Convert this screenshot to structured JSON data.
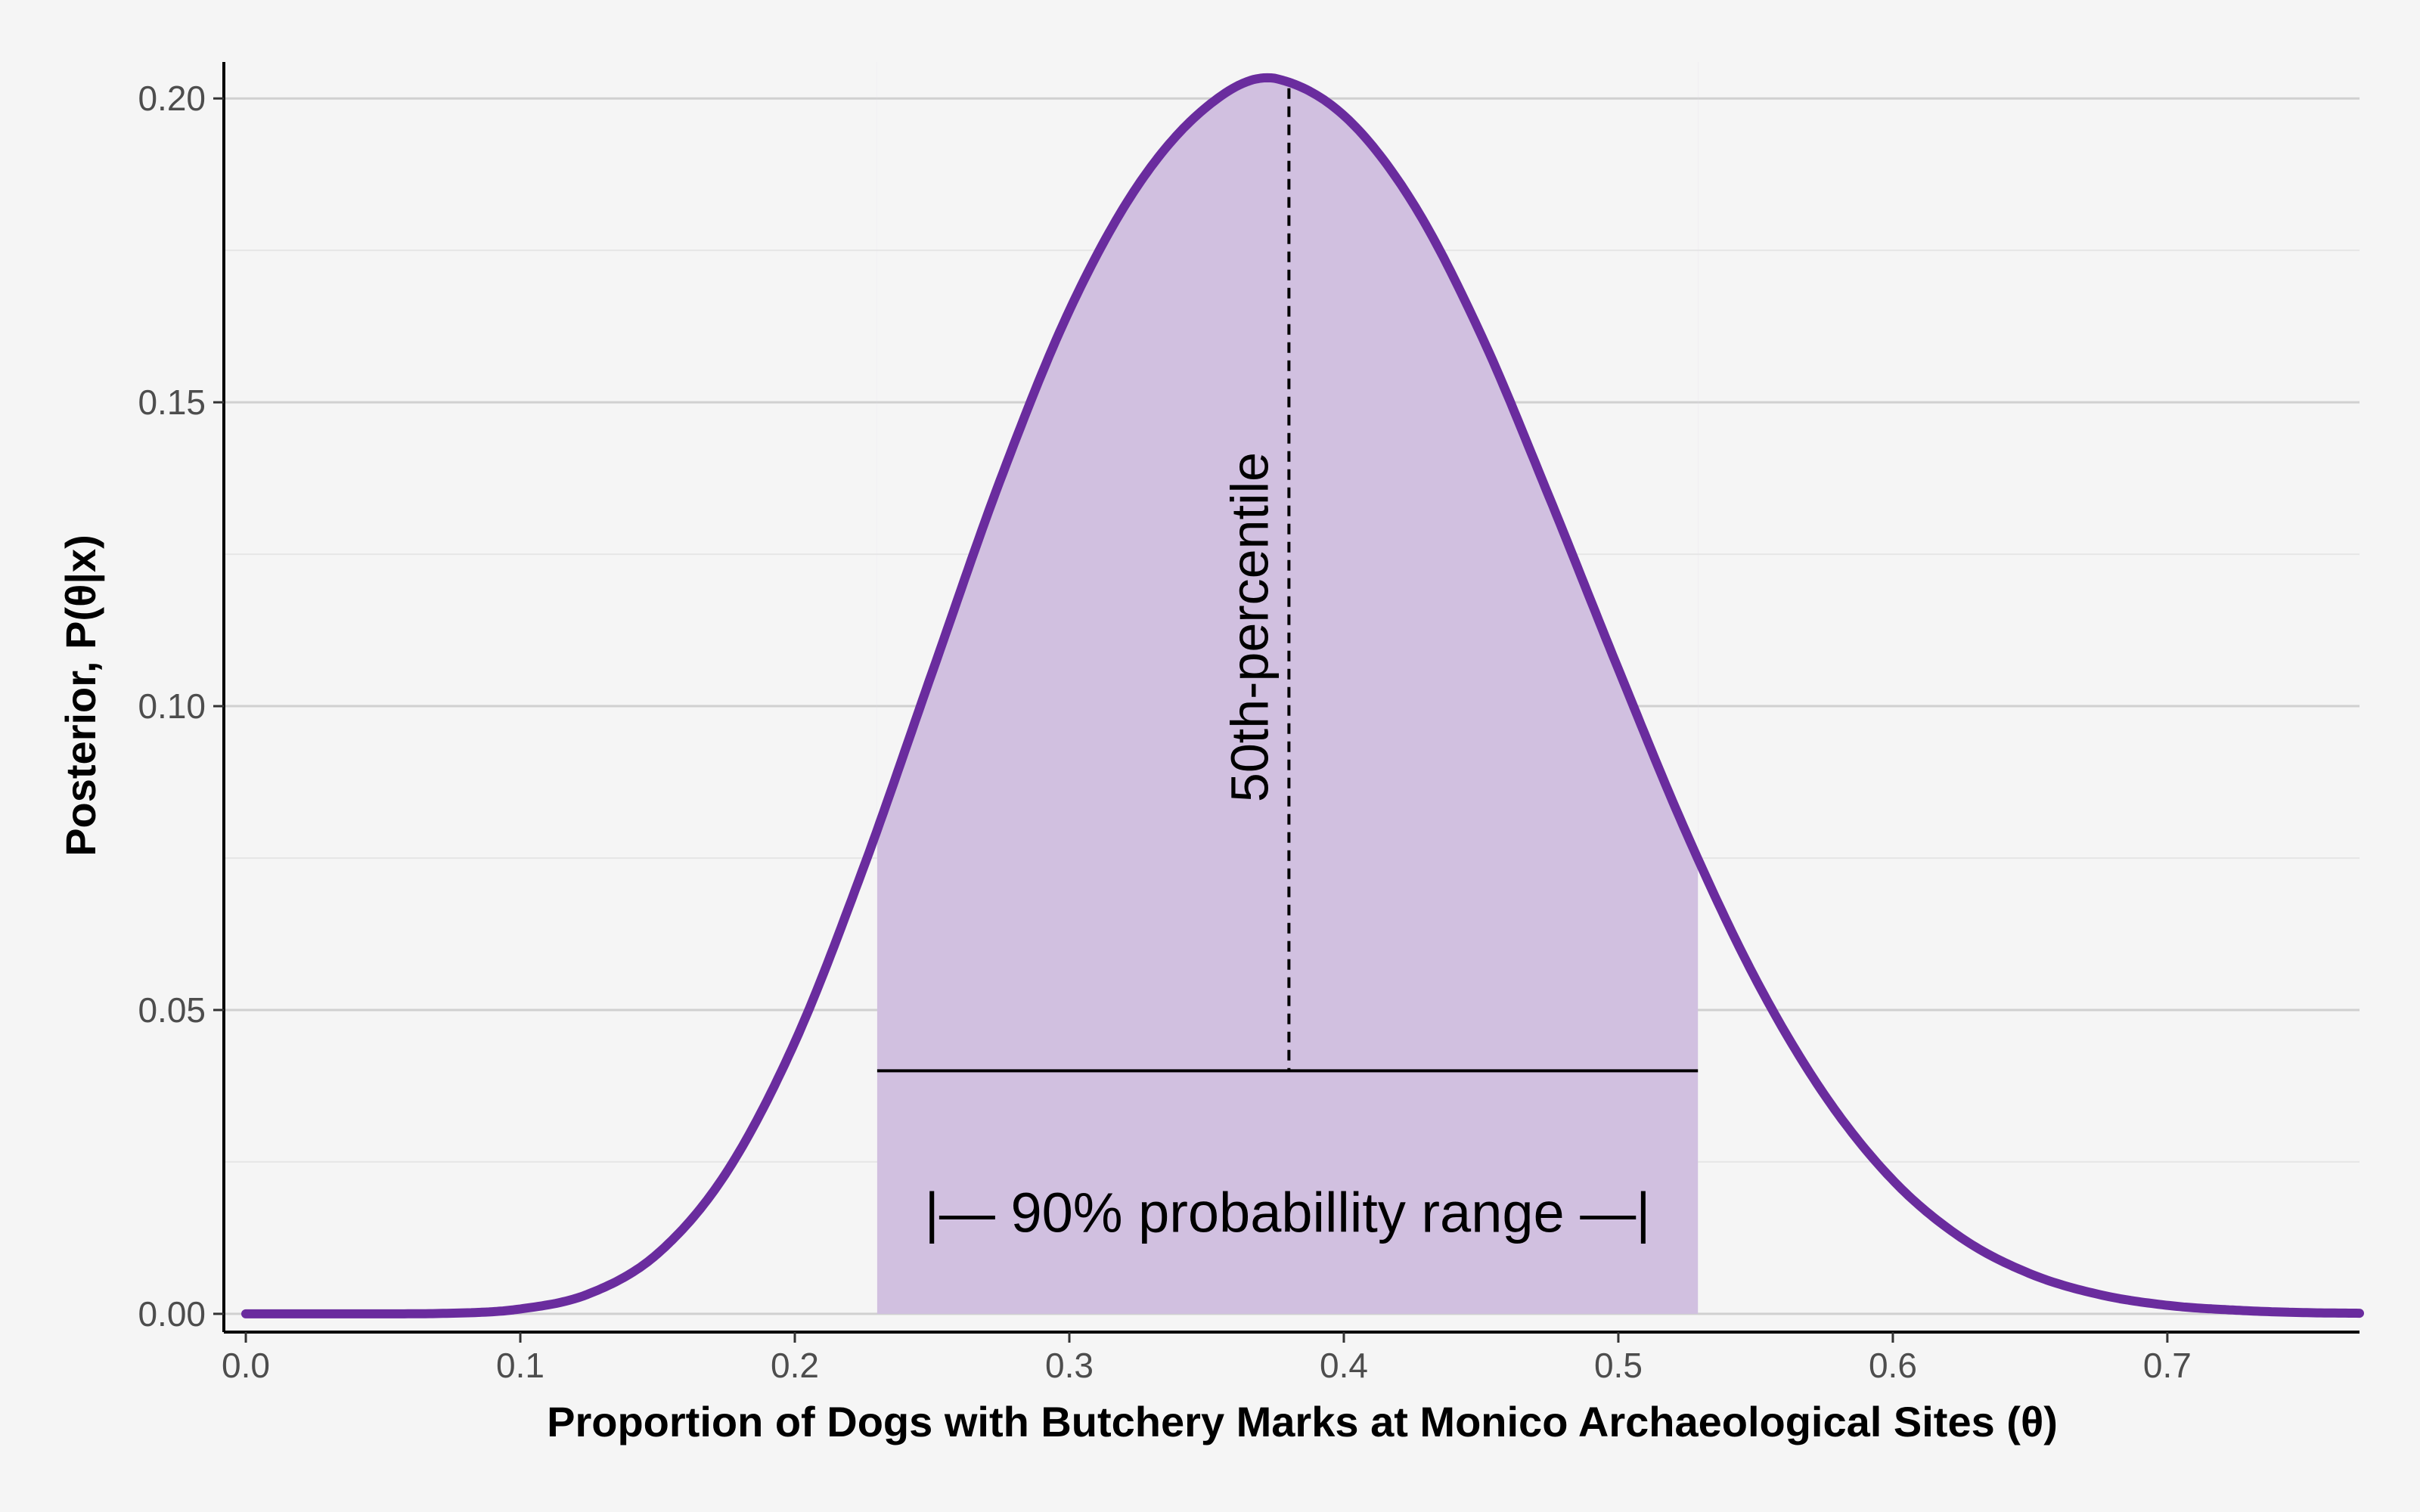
{
  "chart_data": {
    "type": "area",
    "xlabel": "Proportion of Dogs with Butchery Marks at Monico Archaeological Sites (θ)",
    "ylabel": "Posterior, P(θ|x)",
    "xlim": [
      -0.008,
      0.77
    ],
    "ylim": [
      -0.003,
      0.206
    ],
    "x_ticks": [
      0.0,
      0.1,
      0.2,
      0.3,
      0.4,
      0.5,
      0.6,
      0.7
    ],
    "x_tick_labels": [
      "0.0",
      "0.1",
      "0.2",
      "0.3",
      "0.4",
      "0.5",
      "0.6",
      "0.7"
    ],
    "y_ticks": [
      0.0,
      0.05,
      0.1,
      0.15,
      0.2
    ],
    "y_tick_labels": [
      "0.00",
      "0.05",
      "0.10",
      "0.15",
      "0.20"
    ],
    "y_minor_ticks": [
      0.025,
      0.075,
      0.125,
      0.175
    ],
    "grid": true,
    "series": [
      {
        "x": [
          0.0,
          0.025,
          0.05,
          0.075,
          0.1,
          0.125,
          0.15,
          0.175,
          0.2,
          0.225,
          0.25,
          0.275,
          0.3,
          0.325,
          0.35,
          0.372,
          0.375,
          0.4,
          0.425,
          0.45,
          0.475,
          0.5,
          0.525,
          0.55,
          0.575,
          0.6,
          0.625,
          0.65,
          0.675,
          0.7,
          0.725,
          0.75,
          0.77
        ],
        "y": [
          0.0,
          0.0,
          0.0,
          0.0001,
          0.0008,
          0.0033,
          0.0099,
          0.0232,
          0.0447,
          0.0734,
          0.1055,
          0.1374,
          0.1651,
          0.1857,
          0.1986,
          0.2034,
          0.2033,
          0.1972,
          0.1829,
          0.1611,
          0.1342,
          0.1061,
          0.0789,
          0.0551,
          0.0361,
          0.022,
          0.0125,
          0.0066,
          0.0032,
          0.0014,
          0.0006,
          0.0002,
          0.0001
        ],
        "color": "#6a2c9e"
      }
    ],
    "shaded_interval": {
      "x_start": 0.23,
      "x_end": 0.529,
      "color": "#d1c0e0"
    },
    "median": {
      "x": 0.38,
      "label": "50th-percentile"
    },
    "range_annotation": {
      "x_start": 0.23,
      "x_end": 0.529,
      "y": 0.04,
      "label": "|—  90% probabillity range  —|"
    }
  }
}
